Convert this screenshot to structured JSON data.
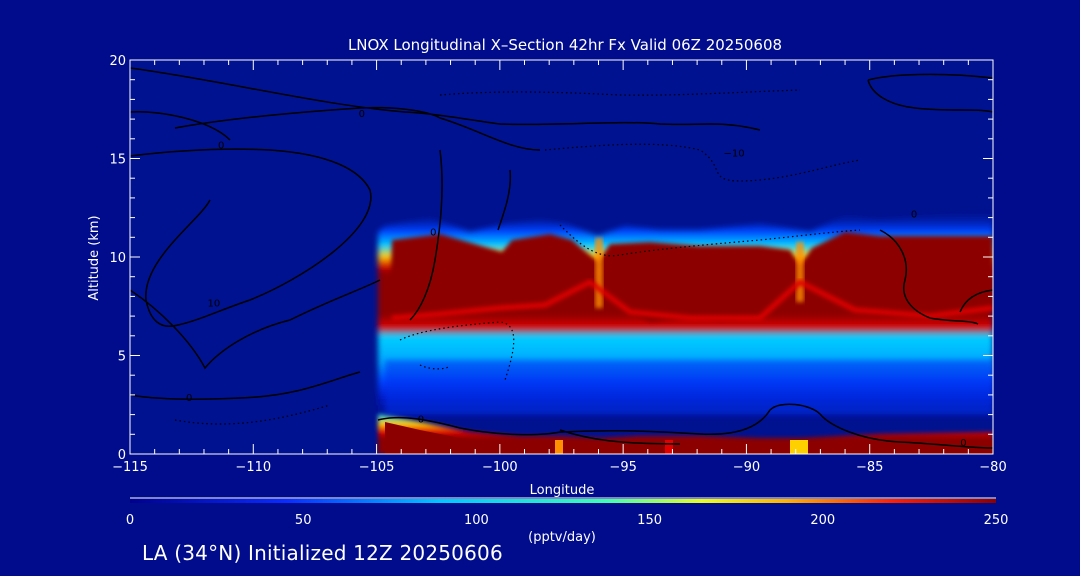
{
  "chart_data": {
    "type": "heatmap",
    "title": "LNOX Longitudinal X–Section 42hr  Fx Valid 06Z 20250608",
    "xlabel": "Longitude",
    "ylabel": "Altitude (km)",
    "xlim": [
      -115,
      -80
    ],
    "ylim": [
      0,
      20
    ],
    "x_ticks": [
      -115,
      -110,
      -105,
      -100,
      -95,
      -90,
      -85,
      -80
    ],
    "x_tick_labels": [
      "−115",
      "−110",
      "−105",
      "−100",
      "−95",
      "−90",
      "−85",
      "−80"
    ],
    "y_ticks": [
      0,
      5,
      10,
      15,
      20
    ],
    "y_tick_labels": [
      "0",
      "5",
      "10",
      "15",
      "20"
    ],
    "colorbar": {
      "min": 0,
      "max": 250,
      "ticks": [
        0,
        50,
        100,
        150,
        200,
        250
      ],
      "tick_labels": [
        "0",
        "50",
        "100",
        "150",
        "200",
        "250"
      ],
      "unit_label": "(pptv/day)"
    },
    "contour_labels": [
      "0",
      "0",
      "10",
      "−10",
      "0",
      "0",
      "0",
      "0",
      "0"
    ],
    "footer": "LA (34°N) Initialized 12Z 20250606",
    "colors": {
      "background": "#000c8c",
      "field_low": "#00128f",
      "field_high": "#8c0000"
    },
    "field_summary": {
      "plume_lon_range": [
        -105,
        -80
      ],
      "upper_plume_alt_range_km": [
        7,
        11.5
      ],
      "upper_plume_peak_value": 250,
      "surface_plume_alt_range_km": [
        0,
        1.8
      ]
    }
  }
}
